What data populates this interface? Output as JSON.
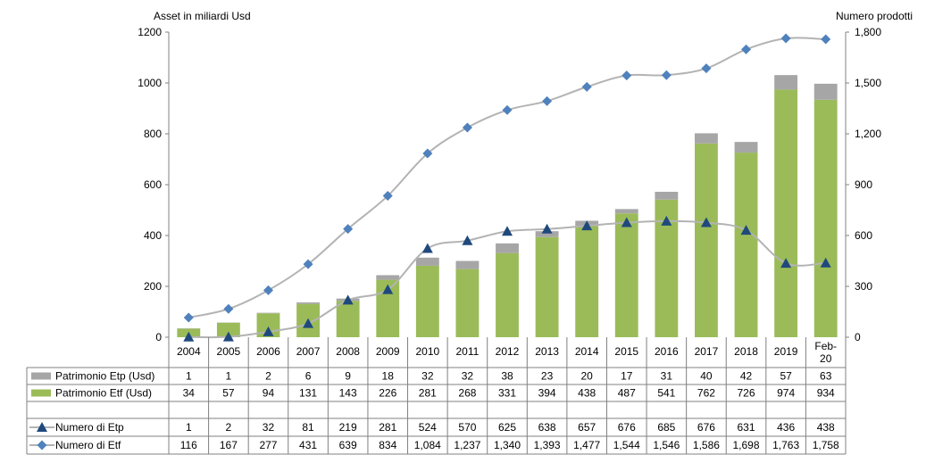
{
  "chart_data": {
    "type": "bar",
    "left_axis_title": "Asset in miliardi Usd",
    "right_axis_title": "Numero  prodotti",
    "ylim_left": [
      0,
      1200
    ],
    "ylim_right": [
      0,
      1800
    ],
    "left_ticks": [
      "0",
      "200",
      "400",
      "600",
      "800",
      "1000",
      "1200"
    ],
    "right_ticks": [
      "0",
      "300",
      "600",
      "900",
      "1,200",
      "1,500",
      "1,800"
    ],
    "categories": [
      "2004",
      "2005",
      "2006",
      "2007",
      "2008",
      "2009",
      "2010",
      "2011",
      "2012",
      "2013",
      "2014",
      "2015",
      "2016",
      "2017",
      "2018",
      "2019",
      [
        "Feb-",
        "20"
      ]
    ],
    "bar_series": [
      {
        "name": "Patrimonio Etp (Usd)",
        "color": "#a6a6a6",
        "stack": "top",
        "values": [
          1,
          1,
          2,
          6,
          9,
          18,
          32,
          32,
          38,
          23,
          20,
          17,
          31,
          40,
          42,
          57,
          63
        ],
        "labels": [
          "1",
          "1",
          "2",
          "6",
          "9",
          "18",
          "32",
          "32",
          "38",
          "23",
          "20",
          "17",
          "31",
          "40",
          "42",
          "57",
          "63"
        ]
      },
      {
        "name": "Patrimonio Etf (Usd)",
        "color": "#9bbb59",
        "stack": "bottom",
        "values": [
          34,
          57,
          94,
          131,
          143,
          226,
          281,
          268,
          331,
          394,
          438,
          487,
          541,
          762,
          726,
          974,
          934
        ],
        "labels": [
          "34",
          "57",
          "94",
          "131",
          "143",
          "226",
          "281",
          "268",
          "331",
          "394",
          "438",
          "487",
          "541",
          "762",
          "726",
          "974",
          "934"
        ]
      }
    ],
    "line_series": [
      {
        "name": "Numero di Etp",
        "color": "#b3b3b3",
        "marker": "triangle",
        "marker_color": "#1f497d",
        "values": [
          1,
          2,
          32,
          81,
          219,
          281,
          524,
          570,
          625,
          638,
          657,
          676,
          685,
          676,
          631,
          436,
          438
        ],
        "labels": [
          "1",
          "2",
          "32",
          "81",
          "219",
          "281",
          "524",
          "570",
          "625",
          "638",
          "657",
          "676",
          "685",
          "676",
          "631",
          "436",
          "438"
        ]
      },
      {
        "name": "Numero di Etf",
        "color": "#b3b3b3",
        "marker": "diamond",
        "marker_color": "#4f81bd",
        "values": [
          116,
          167,
          277,
          431,
          639,
          834,
          1084,
          1237,
          1340,
          1393,
          1477,
          1544,
          1546,
          1586,
          1698,
          1763,
          1758
        ],
        "labels": [
          "116",
          "167",
          "277",
          "431",
          "639",
          "834",
          "1,084",
          "1,237",
          "1,340",
          "1,393",
          "1,477",
          "1,544",
          "1,546",
          "1,586",
          "1,698",
          "1,763",
          "1,758"
        ]
      }
    ]
  }
}
